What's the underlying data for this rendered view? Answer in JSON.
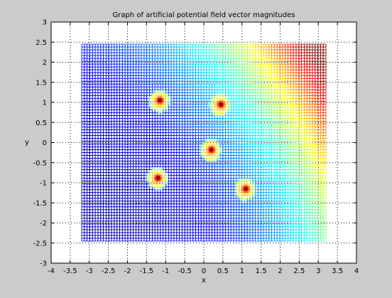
{
  "chart_data": {
    "type": "heatmap",
    "title": "Graph of artificial potential field vector magnitudes",
    "xlabel": "x",
    "ylabel": "y",
    "xlim": [
      -4,
      4
    ],
    "ylim": [
      -3,
      3
    ],
    "xticks": [
      -4,
      -3.5,
      -3,
      -2.5,
      -2,
      -1.5,
      -1,
      -0.5,
      0,
      0.5,
      1,
      1.5,
      2,
      2.5,
      3,
      3.5,
      4
    ],
    "yticks": [
      -3,
      -2.5,
      -2,
      -1.5,
      -1,
      -0.5,
      0,
      0.5,
      1,
      1.5,
      2,
      2.5,
      3
    ],
    "grid": true,
    "grid_style": "dotted",
    "mesh_x_range": [
      -3.2,
      3.2
    ],
    "mesh_y_range": [
      -2.45,
      2.45
    ],
    "colormap": "jet",
    "field": {
      "description_of_gradient": "magnitude increases toward upper-right corner (red at x=3.2,y=2.45)",
      "obstacles": [
        {
          "x": -1.15,
          "y": 1.05
        },
        {
          "x": 0.45,
          "y": 0.95
        },
        {
          "x": 0.2,
          "y": -0.18
        },
        {
          "x": -1.2,
          "y": -0.88
        },
        {
          "x": 1.1,
          "y": -1.15
        }
      ]
    }
  },
  "colors": {
    "figure_background": "#cbcbcb",
    "axes_background": "#ffffff"
  }
}
